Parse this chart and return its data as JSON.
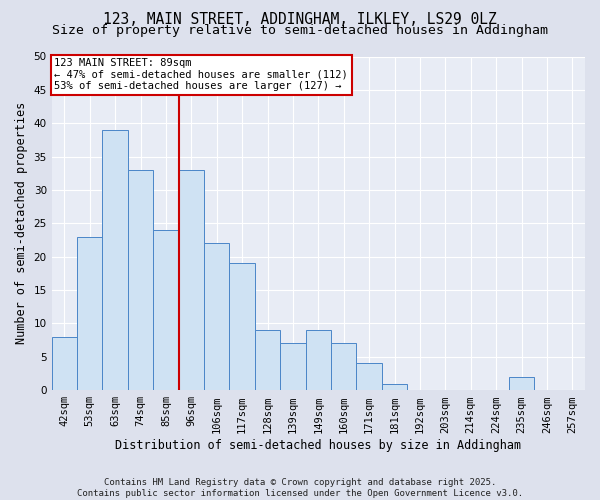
{
  "title1": "123, MAIN STREET, ADDINGHAM, ILKLEY, LS29 0LZ",
  "title2": "Size of property relative to semi-detached houses in Addingham",
  "xlabel": "Distribution of semi-detached houses by size in Addingham",
  "ylabel": "Number of semi-detached properties",
  "categories": [
    "42sqm",
    "53sqm",
    "63sqm",
    "74sqm",
    "85sqm",
    "96sqm",
    "106sqm",
    "117sqm",
    "128sqm",
    "139sqm",
    "149sqm",
    "160sqm",
    "171sqm",
    "181sqm",
    "192sqm",
    "203sqm",
    "214sqm",
    "224sqm",
    "235sqm",
    "246sqm",
    "257sqm"
  ],
  "values": [
    8,
    23,
    39,
    33,
    24,
    33,
    22,
    19,
    9,
    7,
    9,
    7,
    4,
    1,
    0,
    0,
    0,
    0,
    2,
    0,
    0
  ],
  "bar_color": "#cfe2f3",
  "bar_edge_color": "#4a86c8",
  "vline_color": "#cc0000",
  "vline_pos": 4.5,
  "annotation_title": "123 MAIN STREET: 89sqm",
  "annotation_line1": "← 47% of semi-detached houses are smaller (112)",
  "annotation_line2": "53% of semi-detached houses are larger (127) →",
  "annotation_box_facecolor": "#ffffff",
  "annotation_box_edgecolor": "#cc0000",
  "ylim": [
    0,
    50
  ],
  "yticks": [
    0,
    5,
    10,
    15,
    20,
    25,
    30,
    35,
    40,
    45,
    50
  ],
  "footer": "Contains HM Land Registry data © Crown copyright and database right 2025.\nContains public sector information licensed under the Open Government Licence v3.0.",
  "bg_color": "#dde1ed",
  "plot_bg_color": "#e8ecf5",
  "grid_color": "#ffffff",
  "title_fontsize": 10.5,
  "subtitle_fontsize": 9.5,
  "axis_label_fontsize": 8.5,
  "tick_fontsize": 7.5,
  "annotation_fontsize": 7.5,
  "footer_fontsize": 6.5
}
